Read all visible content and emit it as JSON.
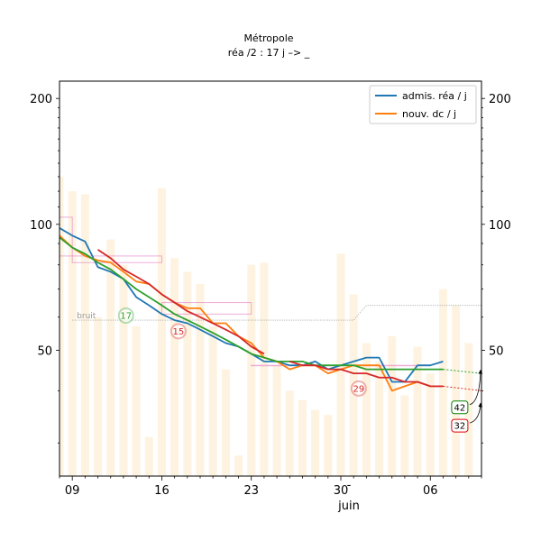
{
  "chart_data": {
    "type": "line",
    "title": "Métropole",
    "subtitle": "réa /2 : 17 j –> _",
    "xlabel": "",
    "month_label": "juin",
    "month_dash": "-",
    "ylabel": "",
    "xlim": [
      8,
      41
    ],
    "ylim": [
      25,
      220
    ],
    "y_scale": "log",
    "y_ticks": [
      50,
      100,
      200
    ],
    "x_ticks": [
      {
        "day": 9,
        "label": "09"
      },
      {
        "day": 16,
        "label": "16"
      },
      {
        "day": 23,
        "label": "23"
      },
      {
        "day": 30,
        "label": "30"
      },
      {
        "day": 37,
        "label": "06"
      }
    ],
    "legend": {
      "placement": "top-right",
      "entries": [
        {
          "label": "admis. réa / j",
          "color": "#1f77b4"
        },
        {
          "label": "nouv. dc / j",
          "color": "#ff7f0e"
        }
      ]
    },
    "colors": {
      "admissions": "#1f77b4",
      "deaths": "#ff7f0e",
      "trend_green": "#2ca02c",
      "trend_red": "#d62728",
      "bars": "#fdf3e0",
      "noise": "#999999",
      "box": "#e377c2"
    },
    "daily_bars": {
      "x": [
        8,
        9,
        10,
        11,
        12,
        13,
        14,
        15,
        16,
        17,
        18,
        19,
        20,
        21,
        22,
        23,
        24,
        25,
        26,
        27,
        28,
        29,
        30,
        31,
        32,
        33,
        34,
        35,
        36,
        37,
        38,
        39,
        40
      ],
      "values": [
        130,
        120,
        118,
        60,
        92,
        80,
        57,
        31,
        122,
        83,
        77,
        72,
        57,
        45,
        28,
        80,
        81,
        46,
        40,
        38,
        36,
        35,
        85,
        68,
        52,
        47,
        54,
        39,
        51,
        44,
        70,
        64,
        52
      ]
    },
    "noise_label": "bruit",
    "noise_line": {
      "x": [
        9,
        31,
        32,
        41
      ],
      "values": [
        59,
        59,
        64,
        64
      ]
    },
    "series": [
      {
        "name": "admis. réa / j",
        "color": "#1f77b4",
        "x": [
          8,
          9,
          10,
          11,
          12,
          13,
          14,
          15,
          16,
          17,
          18,
          19,
          20,
          21,
          22,
          23,
          24,
          25,
          26,
          27,
          28,
          29,
          30,
          31,
          32,
          33,
          34,
          35,
          36,
          37,
          38
        ],
        "values": [
          98,
          94,
          91,
          79,
          77,
          74,
          67,
          64,
          61,
          59,
          58,
          56,
          54,
          52,
          51,
          49,
          47,
          47,
          46,
          46,
          47,
          45,
          46,
          47,
          48,
          48,
          42,
          42,
          46,
          46,
          47
        ]
      },
      {
        "name": "nouv. dc / j",
        "color": "#ff7f0e",
        "x": [
          8,
          9,
          10,
          11,
          12,
          13,
          14,
          15,
          16,
          17,
          18,
          19,
          20,
          21,
          22,
          23,
          24,
          25,
          26,
          27,
          28,
          29,
          30,
          31,
          32,
          33,
          34,
          35,
          36,
          37,
          38
        ],
        "values": [
          94,
          88,
          84,
          82,
          81,
          77,
          73,
          72,
          68,
          65,
          63,
          63,
          58,
          58,
          54,
          52,
          48,
          47,
          45,
          46,
          46,
          44,
          45,
          46,
          46,
          46,
          40,
          41,
          42,
          41,
          41
        ]
      },
      {
        "name": "",
        "color": "#2ca02c",
        "x": [
          8,
          9,
          10,
          11,
          12,
          13,
          14,
          15,
          16,
          17,
          18,
          19,
          20,
          21,
          22,
          23,
          24,
          25,
          26,
          27,
          28,
          29,
          30,
          31,
          32,
          33,
          34,
          35,
          36,
          37,
          38
        ],
        "values": [
          93,
          88,
          85,
          81,
          78,
          74,
          70,
          67,
          64,
          61,
          59,
          57,
          55,
          53,
          51,
          49,
          48,
          47,
          47,
          47,
          46,
          46,
          46,
          46,
          45,
          45,
          45,
          45,
          45,
          45,
          45
        ]
      },
      {
        "name": "",
        "color": "#d62728",
        "x": [
          11,
          12,
          13,
          14,
          15,
          16,
          17,
          18,
          19,
          20,
          21,
          22,
          23,
          24
        ],
        "values": [
          87,
          83,
          78,
          75,
          72,
          68,
          65,
          62,
          60,
          58,
          56,
          54,
          51,
          49
        ]
      },
      {
        "name": "",
        "color": "#d62728",
        "x": [
          26,
          27,
          28,
          29,
          30,
          31,
          32,
          33,
          34,
          35,
          36,
          37,
          38
        ],
        "values": [
          47,
          46,
          46,
          45,
          45,
          44,
          44,
          43,
          43,
          42,
          42,
          41,
          41
        ]
      }
    ],
    "projections": [
      {
        "color": "#2ca02c",
        "x": [
          38,
          41
        ],
        "values": [
          45,
          44
        ]
      },
      {
        "color": "#d62728",
        "x": [
          38,
          41
        ],
        "values": [
          41,
          40
        ]
      }
    ],
    "range_boxes": [
      {
        "x": [
          8,
          9
        ],
        "values": [
          84,
          104
        ]
      },
      {
        "x": [
          9,
          16
        ],
        "values": [
          81,
          84
        ]
      },
      {
        "x": [
          16,
          23
        ],
        "values": [
          61,
          65
        ]
      },
      {
        "x": [
          23,
          37
        ],
        "values": [
          46,
          46
        ]
      }
    ],
    "bubbles": [
      {
        "label": "17",
        "x": 13.2,
        "y": 60.5,
        "color": "#2ca02c"
      },
      {
        "label": "15",
        "x": 17.3,
        "y": 55.5,
        "color": "#d62728"
      },
      {
        "label": "29",
        "x": 31.4,
        "y": 40.5,
        "color": "#d62728"
      }
    ],
    "end_labels": [
      {
        "label": "42",
        "x": 39.3,
        "y": 36.5,
        "color": "#008000",
        "target_x": 41,
        "target_y": 45
      },
      {
        "label": "32",
        "x": 39.3,
        "y": 33,
        "color": "#e00000",
        "target_x": 41,
        "target_y": 37.5
      }
    ]
  }
}
